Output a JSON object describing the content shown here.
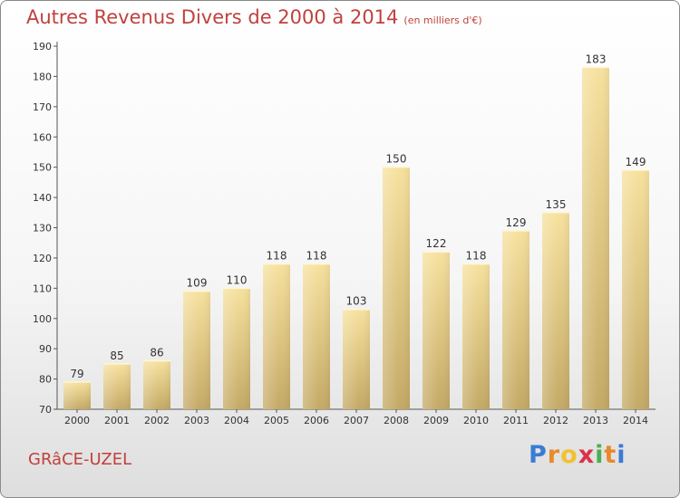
{
  "chart_data": {
    "type": "bar",
    "title": "Autres Revenus Divers de 2000 à 2014",
    "subtitle": "(en milliers d'€)",
    "categories": [
      "2000",
      "2001",
      "2002",
      "2003",
      "2004",
      "2005",
      "2006",
      "2007",
      "2008",
      "2009",
      "2010",
      "2011",
      "2012",
      "2013",
      "2014"
    ],
    "values": [
      79,
      85,
      86,
      109,
      110,
      118,
      118,
      103,
      150,
      122,
      118,
      129,
      135,
      183,
      149
    ],
    "ylim": [
      70,
      190
    ],
    "yticks": [
      70,
      80,
      90,
      100,
      110,
      120,
      130,
      140,
      150,
      160,
      170,
      180,
      190
    ],
    "xlabel": "",
    "ylabel": "",
    "grid": false,
    "data_labels": true,
    "bar_color_top": "#f7e19e",
    "bar_color_bottom": "#c4a965"
  },
  "footer": {
    "commune": "GRâCE-UZEL",
    "logo_letters": [
      "P",
      "r",
      "o",
      "x",
      "i",
      "t",
      "i"
    ],
    "logo_colors": [
      "#3a7bd5",
      "#e8892b",
      "#f2c12e",
      "#d8334a",
      "#4caf50",
      "#e8892b",
      "#3a7bd5"
    ]
  }
}
